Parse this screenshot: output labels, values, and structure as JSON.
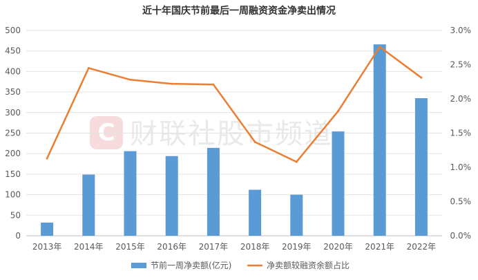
{
  "chart_data": {
    "type": "bar",
    "title": "近十年国庆节前最后一周融资资金净卖出情况",
    "categories": [
      "2013年",
      "2014年",
      "2015年",
      "2016年",
      "2017年",
      "2018年",
      "2019年",
      "2020年",
      "2021年",
      "2022年"
    ],
    "series": [
      {
        "name": "节前一周净卖额(亿元)",
        "type": "bar",
        "axis": "left",
        "color": "#5b9bd5",
        "values": [
          32,
          149,
          206,
          194,
          214,
          112,
          100,
          254,
          466,
          335
        ]
      },
      {
        "name": "净卖额较融资余额占比",
        "type": "line",
        "axis": "right",
        "color": "#ed7d31",
        "values": [
          1.13,
          2.45,
          2.28,
          2.22,
          2.21,
          1.37,
          1.08,
          1.82,
          2.76,
          2.31
        ]
      }
    ],
    "y_left": {
      "range": [
        0,
        500
      ],
      "ticks": [
        "0",
        "50",
        "100",
        "150",
        "200",
        "250",
        "300",
        "350",
        "400",
        "450",
        "500"
      ]
    },
    "y_right": {
      "range": [
        0,
        3.0
      ],
      "ticks": [
        "0.0%",
        "0.5%",
        "1.0%",
        "1.5%",
        "2.0%",
        "2.5%",
        "3.0%"
      ]
    },
    "grid": true,
    "legend": "bottom",
    "watermark": "财联社股市频道"
  }
}
